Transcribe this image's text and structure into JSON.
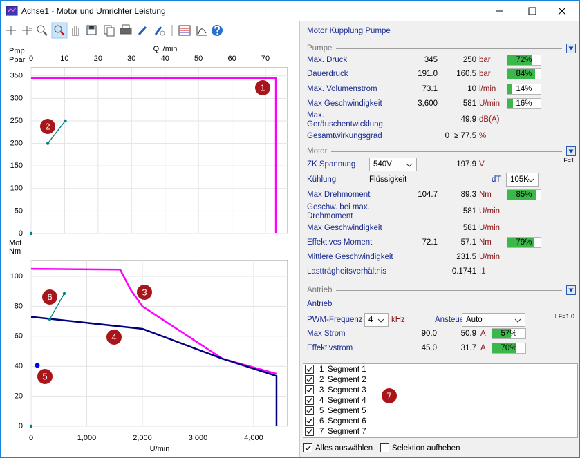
{
  "window": {
    "title": "Achse1 - Motor und Umrichter Leistung"
  },
  "chart_data": [
    {
      "type": "line",
      "x_label": "Q  l/min",
      "y_label_lines": [
        "Pmp",
        "Pbar"
      ],
      "xlim": [
        0,
        76.6
      ],
      "xticks": [
        0,
        10,
        20,
        30,
        40,
        50,
        60,
        70
      ],
      "ylim": [
        0,
        368
      ],
      "yticks": [
        0,
        50,
        100,
        150,
        200,
        250,
        300,
        350
      ],
      "grid": true,
      "series": [
        {
          "color": "#ff00ff",
          "x": [
            0,
            73.1,
            73.1
          ],
          "values": [
            345,
            345,
            0
          ],
          "markers": false
        },
        {
          "color": "#008080",
          "x": [
            5,
            10.2
          ],
          "values": [
            200,
            250
          ],
          "markers": true
        },
        {
          "color": "#008080",
          "x": [
            0
          ],
          "values": [
            0
          ],
          "markers": true
        }
      ],
      "annotations": [
        "1",
        "2"
      ]
    },
    {
      "type": "line",
      "x_label": "U/min",
      "y_label_lines": [
        "Mot",
        "Nm"
      ],
      "xlim": [
        0,
        4609
      ],
      "xticks": [
        0,
        {
          "value": 1000,
          "label": "1,000"
        },
        {
          "value": 2000,
          "label": "2,000"
        },
        {
          "value": 3000,
          "label": "3,000"
        },
        {
          "value": 4000,
          "label": "4,000"
        }
      ],
      "ylim": [
        0,
        110.6
      ],
      "yticks": [
        0,
        20,
        40,
        60,
        80,
        100
      ],
      "grid": true,
      "series": [
        {
          "color": "#ff00ff",
          "x": [
            0,
            1600,
            1790,
            2000,
            3440,
            4410
          ],
          "values": [
            105,
            104.5,
            91,
            80,
            45,
            35
          ],
          "markers": false
        },
        {
          "color": "#00007f",
          "x": [
            0,
            2000,
            3440,
            4410,
            4410
          ],
          "values": [
            73,
            65,
            45,
            33.5,
            0
          ],
          "markers": false
        },
        {
          "color": "#0000ff",
          "x": [
            112
          ],
          "values": [
            40.6
          ],
          "markers": true
        },
        {
          "color": "#008080",
          "x": [
            335,
            596
          ],
          "values": [
            71.4,
            88.5
          ],
          "markers": true
        },
        {
          "color": "#008080",
          "x": [
            0
          ],
          "values": [
            0
          ],
          "markers": true
        }
      ],
      "annotations": [
        "3",
        "4",
        "5",
        "6"
      ]
    }
  ],
  "panel": {
    "header": "Motor Kupplung Pumpe",
    "pumpe": {
      "title": "Pumpe",
      "rows": [
        {
          "label": "Max. Druck",
          "value": "345",
          "setpoint": "250",
          "unit": "bar",
          "percent": 72,
          "percent_label": "72%"
        },
        {
          "label": "Dauerdruck",
          "value": "191.0",
          "setpoint": "160.5",
          "unit": "bar",
          "percent": 84,
          "percent_label": "84%"
        },
        {
          "label": "Max. Volumenstrom",
          "value": "73.1",
          "setpoint": "10",
          "unit": "l/min",
          "percent": 14,
          "percent_label": "14%"
        },
        {
          "label": "Max Geschwindigkeit",
          "value": "3,600",
          "setpoint": "581",
          "unit": "U/min",
          "percent": 16,
          "percent_label": "16%"
        },
        {
          "label": [
            "Max.",
            "Geräuschentwicklung"
          ],
          "setpoint": "49.9",
          "unit": "dB(A)"
        },
        {
          "label": "Gesamtwirkungsgrad",
          "value": "0",
          "relation": "≥",
          "setpoint": "77.5",
          "unit": "%"
        }
      ]
    },
    "motor": {
      "title": "Motor",
      "note": "LF=1",
      "rows": [
        {
          "label": "ZK Spannung",
          "dropdown": "540V",
          "setpoint": "197.9",
          "unit": "V"
        },
        {
          "label": "Kühlung",
          "text": "Flüssigkeit",
          "extra_label": "dT",
          "extra_dropdown": "105K"
        },
        {
          "label": "Max Drehmoment",
          "value": "104.7",
          "setpoint": "89.3",
          "unit": "Nm",
          "percent": 85,
          "percent_label": "85%"
        },
        {
          "label": [
            "Geschw. bei max.",
            "Drehmoment"
          ],
          "setpoint": "581",
          "unit": "U/min"
        },
        {
          "label": "Max Geschwindigkeit",
          "setpoint": "581",
          "unit": "U/min"
        },
        {
          "label": "Effektives Moment",
          "value": "72.1",
          "setpoint": "57.1",
          "unit": "Nm",
          "percent": 79,
          "percent_label": "79%"
        },
        {
          "label": "Mittlere Geschwindigkeit",
          "setpoint": "231.5",
          "unit": "U/min"
        },
        {
          "label": "Lastträgheitsverhältnis",
          "setpoint": "0.1741",
          "unit": ":1"
        }
      ]
    },
    "antrieb": {
      "title": "Antrieb",
      "note": "LF=1.0",
      "rows": [
        {
          "label": "Antrieb"
        },
        {
          "label": "PWM-Frequenz",
          "dropdown": "4",
          "unit": "kHz",
          "extra_label": "Ansteuerung",
          "extra_dropdown": "Auto"
        },
        {
          "label": "Max Strom",
          "value": "90.0",
          "setpoint": "50.9",
          "unit": "A",
          "percent": 57,
          "percent_label": "57%"
        },
        {
          "label": "Effektivstrom",
          "value": "45.0",
          "setpoint": "31.7",
          "unit": "A",
          "percent": 70,
          "percent_label": "70%"
        }
      ]
    }
  },
  "segments": {
    "marker": "7",
    "items": [
      {
        "number": "1",
        "label": "Segment 1",
        "checked": true
      },
      {
        "number": "2",
        "label": "Segment 2",
        "checked": true
      },
      {
        "number": "3",
        "label": "Segment 3",
        "checked": true
      },
      {
        "number": "4",
        "label": "Segment 4",
        "checked": true
      },
      {
        "number": "5",
        "label": "Segment 5",
        "checked": true
      },
      {
        "number": "6",
        "label": "Segment 6",
        "checked": true
      },
      {
        "number": "7",
        "label": "Segment 7",
        "checked": true
      }
    ]
  },
  "footer": {
    "select_all": "Alles auswählen",
    "select_all_checked": true,
    "deselect": "Selektion aufheben",
    "deselect_checked": false
  }
}
